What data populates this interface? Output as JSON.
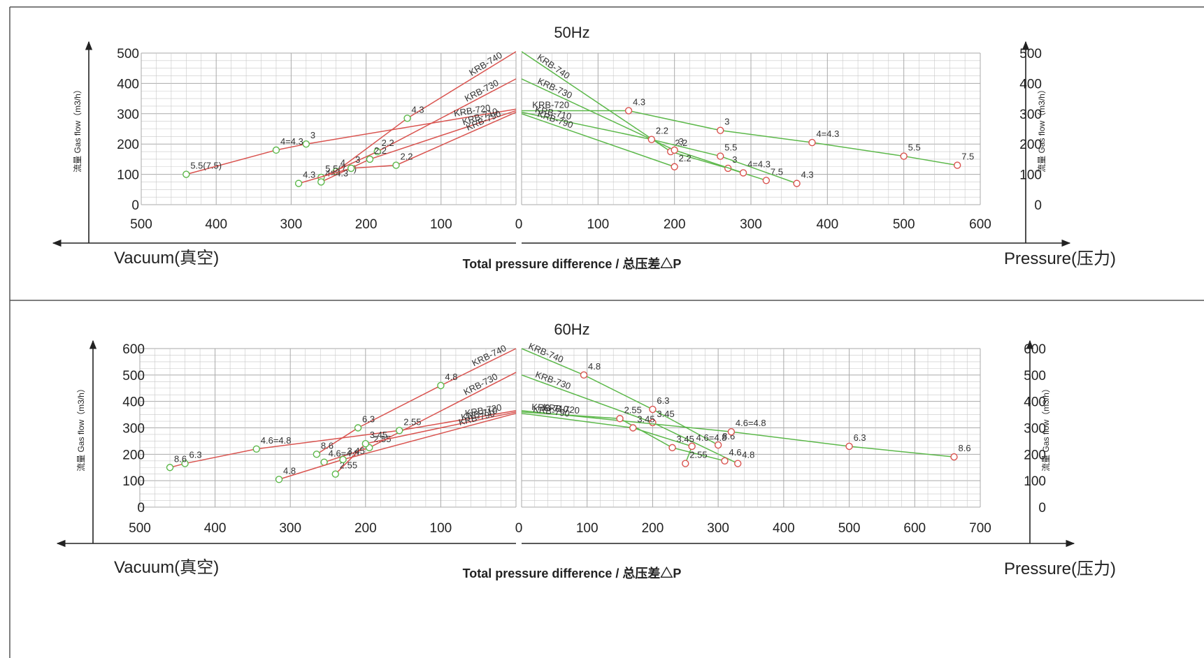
{
  "colors": {
    "vacuum": "#d9534f",
    "pressure": "#5cb84a",
    "grid": "#c8c8c8",
    "axis": "#333333"
  },
  "chart_data": [
    {
      "type": "line",
      "title": "50Hz",
      "xlabel": "Total pressure difference / 总压差△P",
      "left_label": "Vacuum(真空)",
      "right_label": "Pressure(压力)",
      "ylabel": "流量 Gas flow（m3/h）",
      "vacuum_xticks": [
        "500",
        "400",
        "300",
        "200",
        "100"
      ],
      "pressure_xticks": [
        "0",
        "100",
        "200",
        "300",
        "400",
        "500",
        "600"
      ],
      "yticks": [
        "500",
        "400",
        "300",
        "200",
        "100",
        "0"
      ],
      "vacuum_xlim": [
        500,
        0
      ],
      "pressure_xlim": [
        0,
        600
      ],
      "ylim": [
        0,
        500
      ],
      "vacuum_series": [
        {
          "name": "KRB-740",
          "points": [
            {
              "x": 0,
              "y": 505
            },
            {
              "x": 145,
              "y": 285,
              "label": "4.3"
            },
            {
              "x": 240,
              "y": 110,
              "label": "4"
            }
          ]
        },
        {
          "name": "KRB-730",
          "points": [
            {
              "x": 0,
              "y": 415
            },
            {
              "x": 185,
              "y": 175,
              "label": "2.2"
            },
            {
              "x": 260,
              "y": 90,
              "label": "5.5(7.5)"
            }
          ]
        },
        {
          "name": "KRB-720",
          "points": [
            {
              "x": 0,
              "y": 315
            },
            {
              "x": 280,
              "y": 200,
              "label": "3"
            },
            {
              "x": 320,
              "y": 180,
              "label": "4=4.3"
            },
            {
              "x": 440,
              "y": 100,
              "label": "5.5(7.5)"
            }
          ]
        },
        {
          "name": "KRB-710",
          "points": [
            {
              "x": 0,
              "y": 310
            },
            {
              "x": 195,
              "y": 150,
              "label": "2.2"
            },
            {
              "x": 260,
              "y": 75,
              "label": "4=4.3"
            }
          ]
        },
        {
          "name": "KRB-790",
          "points": [
            {
              "x": 0,
              "y": 305
            },
            {
              "x": 160,
              "y": 130,
              "label": "2.2"
            },
            {
              "x": 220,
              "y": 120,
              "label": "3"
            },
            {
              "x": 290,
              "y": 70,
              "label": "4.3"
            }
          ]
        }
      ],
      "pressure_series": [
        {
          "name": "KRB-740",
          "points": [
            {
              "x": 0,
              "y": 505
            },
            {
              "x": 195,
              "y": 175,
              "label": "2.2"
            },
            {
              "x": 270,
              "y": 120,
              "label": "3"
            },
            {
              "x": 320,
              "y": 80,
              "label": "7.5"
            }
          ]
        },
        {
          "name": "KRB-730",
          "points": [
            {
              "x": 0,
              "y": 415
            },
            {
              "x": 200,
              "y": 180,
              "label": "3"
            },
            {
              "x": 290,
              "y": 105,
              "label": "4=4.3"
            }
          ]
        },
        {
          "name": "KRB-720",
          "points": [
            {
              "x": 0,
              "y": 310
            },
            {
              "x": 140,
              "y": 310,
              "label": "4.3"
            },
            {
              "x": 260,
              "y": 245,
              "label": "3"
            },
            {
              "x": 380,
              "y": 205,
              "label": "4=4.3"
            },
            {
              "x": 500,
              "y": 160,
              "label": "5.5"
            },
            {
              "x": 570,
              "y": 130,
              "label": "7.5"
            }
          ]
        },
        {
          "name": "KRB-710",
          "points": [
            {
              "x": 0,
              "y": 305
            },
            {
              "x": 170,
              "y": 215,
              "label": "2.2"
            },
            {
              "x": 260,
              "y": 160,
              "label": "5.5"
            },
            {
              "x": 360,
              "y": 70,
              "label": "4.3"
            }
          ]
        },
        {
          "name": "KRB-790",
          "points": [
            {
              "x": 0,
              "y": 300
            },
            {
              "x": 200,
              "y": 125,
              "label": "2.2"
            }
          ]
        }
      ]
    },
    {
      "type": "line",
      "title": "60Hz",
      "xlabel": "Total pressure difference / 总压差△P",
      "left_label": "Vacuum(真空)",
      "right_label": "Pressure(压力)",
      "ylabel": "流量 Gas flow（m3/h）",
      "vacuum_xticks": [
        "500",
        "400",
        "300",
        "200",
        "100"
      ],
      "pressure_xticks": [
        "0",
        "100",
        "200",
        "300",
        "400",
        "500",
        "600",
        "700"
      ],
      "yticks": [
        "600",
        "500",
        "400",
        "300",
        "200",
        "100",
        "0"
      ],
      "vacuum_xlim": [
        500,
        0
      ],
      "pressure_xlim": [
        0,
        700
      ],
      "ylim": [
        0,
        600
      ],
      "vacuum_series": [
        {
          "name": "KRB-740",
          "points": [
            {
              "x": 0,
              "y": 600
            },
            {
              "x": 100,
              "y": 460,
              "label": "4.8"
            },
            {
              "x": 210,
              "y": 300,
              "label": "6.3"
            },
            {
              "x": 265,
              "y": 200,
              "label": "8.6"
            }
          ]
        },
        {
          "name": "KRB-730",
          "points": [
            {
              "x": 0,
              "y": 510
            },
            {
              "x": 195,
              "y": 225,
              "label": "2.55"
            },
            {
              "x": 255,
              "y": 170,
              "label": "4.6=4.8"
            }
          ]
        },
        {
          "name": "KRB-720",
          "points": [
            {
              "x": 0,
              "y": 365
            },
            {
              "x": 155,
              "y": 290,
              "label": "2.55"
            },
            {
              "x": 345,
              "y": 220,
              "label": "4.6=4.8"
            },
            {
              "x": 440,
              "y": 165,
              "label": "6.3"
            },
            {
              "x": 460,
              "y": 150,
              "label": "8.6"
            }
          ]
        },
        {
          "name": "KRB-710",
          "points": [
            {
              "x": 0,
              "y": 360
            },
            {
              "x": 200,
              "y": 240,
              "label": "3.45"
            },
            {
              "x": 240,
              "y": 125,
              "label": "2.55"
            }
          ]
        },
        {
          "name": "KRB-790",
          "points": [
            {
              "x": 0,
              "y": 355
            },
            {
              "x": 230,
              "y": 180,
              "label": "3.45"
            },
            {
              "x": 315,
              "y": 105,
              "label": "4.8"
            }
          ]
        }
      ],
      "pressure_series": [
        {
          "name": "KRB-740",
          "points": [
            {
              "x": 0,
              "y": 600
            },
            {
              "x": 95,
              "y": 500,
              "label": "4.8"
            },
            {
              "x": 200,
              "y": 370,
              "label": "6.3"
            },
            {
              "x": 300,
              "y": 235,
              "label": "8.6"
            }
          ]
        },
        {
          "name": "KRB-730",
          "points": [
            {
              "x": 0,
              "y": 500
            },
            {
              "x": 200,
              "y": 320,
              "label": "3.45"
            },
            {
              "x": 330,
              "y": 165,
              "label": "4.8"
            }
          ]
        },
        {
          "name": "KRB-720",
          "points": [
            {
              "x": 0,
              "y": 365
            },
            {
              "x": 320,
              "y": 285,
              "label": "4.6=4.8"
            },
            {
              "x": 500,
              "y": 230,
              "label": "6.3"
            },
            {
              "x": 660,
              "y": 190,
              "label": "8.6"
            }
          ]
        },
        {
          "name": "KRB-710",
          "points": [
            {
              "x": 0,
              "y": 360
            },
            {
              "x": 150,
              "y": 335,
              "label": "2.55"
            },
            {
              "x": 230,
              "y": 225,
              "label": "3.45"
            },
            {
              "x": 310,
              "y": 175,
              "label": "4.6"
            }
          ]
        },
        {
          "name": "KRB-790",
          "points": [
            {
              "x": 0,
              "y": 355
            },
            {
              "x": 170,
              "y": 300,
              "label": "3.45"
            },
            {
              "x": 260,
              "y": 230,
              "label": "4.6=4.8"
            },
            {
              "x": 250,
              "y": 165,
              "label": "2.55"
            }
          ]
        }
      ]
    }
  ]
}
